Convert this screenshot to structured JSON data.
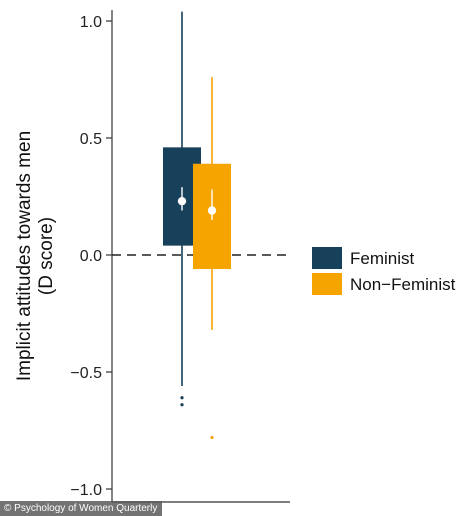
{
  "chart_data": {
    "type": "box",
    "title": "",
    "ylabel_lines": [
      "Implicit attitudes towards men",
      "(D score)"
    ],
    "xlabel": "",
    "ylim": [
      -1.05,
      1.05
    ],
    "yticks": [
      1.0,
      0.5,
      0.0,
      -0.5,
      -1.0
    ],
    "ytick_labels": [
      "1.0",
      "0.5",
      "0.0",
      "−0.5",
      "−1.0"
    ],
    "reference_line": {
      "y": 0.0,
      "style": "dashed"
    },
    "grid": false,
    "legend_position": "right",
    "series": [
      {
        "name": "Feminist",
        "color": "#17405b",
        "whisker_low": -0.56,
        "q1": 0.04,
        "median": null,
        "q3": 0.46,
        "whisker_high": 1.04,
        "mean": 0.23,
        "ci_low": 0.19,
        "ci_high": 0.29,
        "outliers": [
          -0.61,
          -0.64
        ]
      },
      {
        "name": "Non−Feminist",
        "color": "#f5a400",
        "whisker_low": -0.32,
        "q1": -0.06,
        "median": null,
        "q3": 0.39,
        "whisker_high": 0.76,
        "mean": 0.19,
        "ci_low": 0.15,
        "ci_high": 0.28,
        "outliers": [
          -0.78
        ]
      }
    ]
  },
  "credit": "© Psychology of Women Quarterly"
}
